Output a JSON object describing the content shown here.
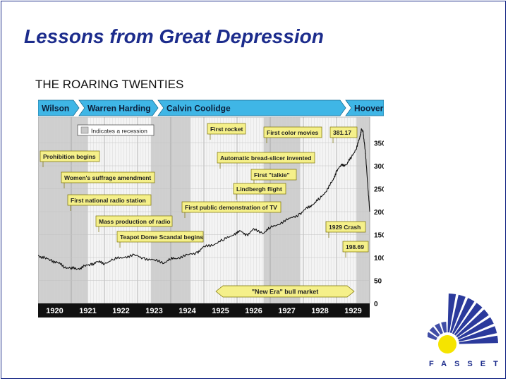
{
  "slide": {
    "title": "Lessons from Great Depression",
    "subtitle": "THE ROARING TWENTIES"
  },
  "logo": {
    "text": "FASSET",
    "colors": {
      "blue": "#2b3a9c",
      "yellow": "#f5e400"
    }
  },
  "colors": {
    "accent_teal": "#3fb6e6",
    "label_fill": "#f5f08a",
    "recession_shade": "#c8c8c8",
    "axis_band": "#111111",
    "title_blue": "#1c2c8c"
  },
  "chart_data": {
    "type": "line",
    "title": "",
    "xlabel": "",
    "ylabel": "",
    "xlim": [
      1920,
      1930
    ],
    "ylim": [
      0,
      400
    ],
    "x_ticks": [
      "1920",
      "1921",
      "1922",
      "1923",
      "1924",
      "1925",
      "1926",
      "1927",
      "1928",
      "1929"
    ],
    "y_ticks": [
      "350",
      "300",
      "250",
      "200",
      "150",
      "100",
      "50",
      "0"
    ],
    "legend": "Indicates a recession",
    "presidents": [
      "Wilson",
      "Warren Harding",
      "Calvin Coolidge",
      "Hoover"
    ],
    "recessions": [
      {
        "start": 1920.0,
        "end": 1921.5
      },
      {
        "start": 1923.4,
        "end": 1924.6
      },
      {
        "start": 1926.8,
        "end": 1927.9
      },
      {
        "start": 1929.6,
        "end": 1930.0
      }
    ],
    "series": [
      {
        "name": "",
        "x": [
          1920.0,
          1920.2,
          1920.4,
          1920.6,
          1920.8,
          1921.0,
          1921.2,
          1921.4,
          1921.6,
          1921.8,
          1922.0,
          1922.3,
          1922.6,
          1922.9,
          1923.2,
          1923.5,
          1923.8,
          1924.0,
          1924.2,
          1924.5,
          1924.8,
          1925.0,
          1925.3,
          1925.6,
          1925.9,
          1926.1,
          1926.3,
          1926.5,
          1926.8,
          1927.0,
          1927.3,
          1927.6,
          1927.9,
          1928.1,
          1928.3,
          1928.5,
          1928.7,
          1928.9,
          1929.0,
          1929.15,
          1929.3,
          1929.45,
          1929.6,
          1929.7,
          1929.75,
          1929.8,
          1929.85,
          1929.9,
          1929.95,
          1930.0
        ],
        "y": [
          105,
          98,
          94,
          88,
          80,
          76,
          76,
          80,
          86,
          90,
          88,
          96,
          102,
          104,
          99,
          93,
          90,
          96,
          100,
          104,
          112,
          122,
          130,
          138,
          152,
          156,
          150,
          160,
          155,
          164,
          176,
          184,
          196,
          206,
          218,
          228,
          248,
          268,
          290,
          300,
          304,
          318,
          340,
          360,
          381,
          372,
          345,
          300,
          250,
          200
        ]
      }
    ],
    "annotations": [
      "Prohibition begins",
      "Women's suffrage amendment",
      "First national radio station",
      "Mass production of radio",
      "Teapot Dome Scandal begins",
      "First rocket",
      "First color movies",
      "381.17",
      "Automatic bread-slicer invented",
      "First \"talkie\"",
      "Lindbergh flight",
      "First public demonstration of TV",
      "1929 Crash",
      "198.69",
      "\"New Era\" bull market"
    ]
  }
}
